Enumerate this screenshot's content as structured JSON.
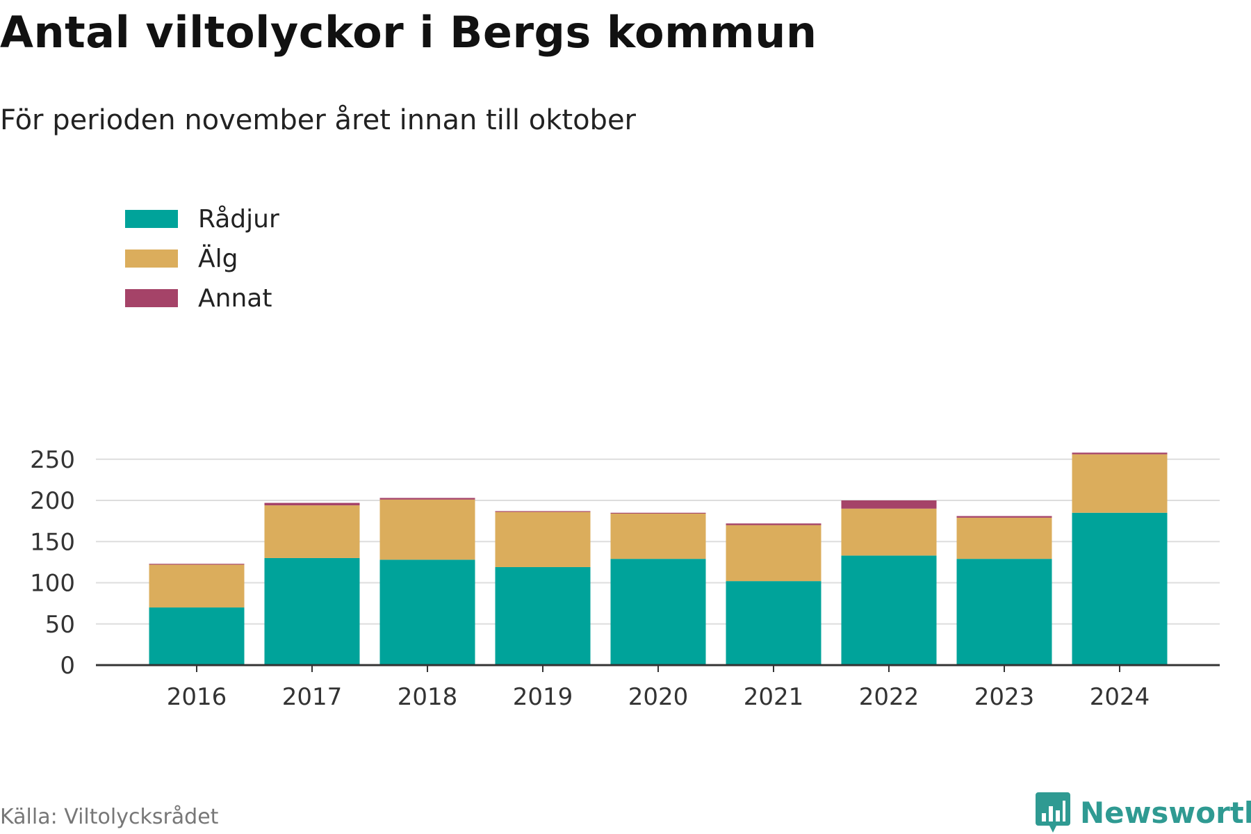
{
  "header": {
    "title": "Antal viltolyckor i Bergs kommun",
    "subtitle": "För perioden november året innan till oktober"
  },
  "footer": {
    "source": "Källa: Viltolycksrådet",
    "brand": "Newsworthy",
    "brand_icon": "bar-chart-icon"
  },
  "colors": {
    "radjur": "#00a39a",
    "alg": "#dbad5c",
    "annat": "#a54368",
    "grid": "#dddddd",
    "axis": "#333333",
    "brand": "#2f9a92"
  },
  "chart_data": {
    "type": "bar",
    "stacked": true,
    "categories": [
      "2016",
      "2017",
      "2018",
      "2019",
      "2020",
      "2021",
      "2022",
      "2023",
      "2024"
    ],
    "series": [
      {
        "name": "Rådjur",
        "color": "#00a39a",
        "values": [
          70,
          130,
          128,
          119,
          129,
          102,
          133,
          129,
          185
        ]
      },
      {
        "name": "Älg",
        "color": "#dbad5c",
        "values": [
          52,
          64,
          73,
          67,
          55,
          68,
          57,
          50,
          71
        ]
      },
      {
        "name": "Annat",
        "color": "#a54368",
        "values": [
          1,
          3,
          2,
          1,
          1,
          2,
          10,
          2,
          2
        ]
      }
    ],
    "yticks": [
      0,
      50,
      100,
      150,
      200,
      250
    ],
    "ylim": [
      0,
      270
    ],
    "grid": true,
    "legend_position": "top-left"
  }
}
